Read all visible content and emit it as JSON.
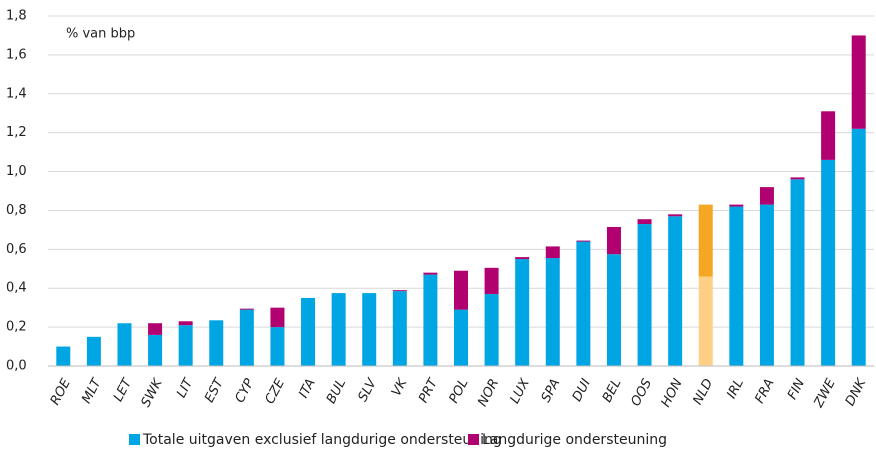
{
  "chart_data": {
    "type": "stacked_bar",
    "axis_label": "% van bbp",
    "categories": [
      "ROE",
      "MLT",
      "LET",
      "SWK",
      "LIT",
      "EST",
      "CYP",
      "CZE",
      "ITA",
      "BUL",
      "SLV",
      "VK",
      "PRT",
      "POL",
      "NOR",
      "LUX",
      "SPA",
      "DUI",
      "BEL",
      "OOS",
      "HON",
      "NLD",
      "IRL",
      "FRA",
      "FIN",
      "ZWE",
      "DNK"
    ],
    "series": [
      {
        "name": "Totale uitgaven exclusief langdurige ondersteuning",
        "color": "#00a6e4",
        "values": [
          0.1,
          0.15,
          0.22,
          0.16,
          0.21,
          0.235,
          0.29,
          0.2,
          0.35,
          0.375,
          0.375,
          0.385,
          0.47,
          0.29,
          0.37,
          0.55,
          0.555,
          0.64,
          0.575,
          0.73,
          0.77,
          0.46,
          0.82,
          0.83,
          0.96,
          1.06,
          1.22
        ],
        "colors": [
          "#00a6e4",
          "#00a6e4",
          "#00a6e4",
          "#00a6e4",
          "#00a6e4",
          "#00a6e4",
          "#00a6e4",
          "#00a6e4",
          "#00a6e4",
          "#00a6e4",
          "#00a6e4",
          "#00a6e4",
          "#00a6e4",
          "#00a6e4",
          "#00a6e4",
          "#00a6e4",
          "#00a6e4",
          "#00a6e4",
          "#00a6e4",
          "#00a6e4",
          "#00a6e4",
          "#ffcf85",
          "#00a6e4",
          "#00a6e4",
          "#00a6e4",
          "#00a6e4",
          "#00a6e4"
        ]
      },
      {
        "name": "Langdurige ondersteuning",
        "color": "#b1006f",
        "values": [
          0,
          0,
          0,
          0.06,
          0.02,
          0,
          0.005,
          0.1,
          0,
          0,
          0,
          0.005,
          0.01,
          0.2,
          0.135,
          0.01,
          0.06,
          0.005,
          0.14,
          0.025,
          0.01,
          0.37,
          0.01,
          0.09,
          0.01,
          0.25,
          0.48
        ],
        "colors": [
          "#b1006f",
          "#b1006f",
          "#b1006f",
          "#b1006f",
          "#b1006f",
          "#b1006f",
          "#b1006f",
          "#b1006f",
          "#b1006f",
          "#b1006f",
          "#b1006f",
          "#b1006f",
          "#b1006f",
          "#b1006f",
          "#b1006f",
          "#b1006f",
          "#b1006f",
          "#b1006f",
          "#b1006f",
          "#b1006f",
          "#b1006f",
          "#f5a623",
          "#b1006f",
          "#b1006f",
          "#b1006f",
          "#b1006f",
          "#b1006f"
        ]
      }
    ],
    "ylim": [
      0,
      1.8
    ],
    "yticks": [
      {
        "value": 0,
        "label": "0,0"
      },
      {
        "value": 0.2,
        "label": "0,2"
      },
      {
        "value": 0.4,
        "label": "0,4"
      },
      {
        "value": 0.6,
        "label": "0,6"
      },
      {
        "value": 0.8,
        "label": "0,8"
      },
      {
        "value": 1.0,
        "label": "1,0"
      },
      {
        "value": 1.2,
        "label": "1,2"
      },
      {
        "value": 1.4,
        "label": "1,4"
      },
      {
        "value": 1.6,
        "label": "1,6"
      },
      {
        "value": 1.8,
        "label": "1,8"
      }
    ],
    "grid": true,
    "legend": "bottom"
  }
}
